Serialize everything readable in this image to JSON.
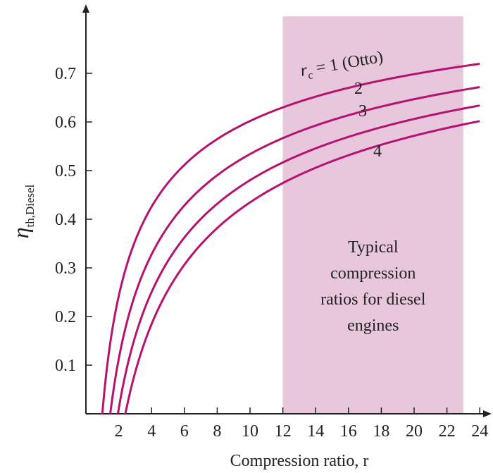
{
  "chart_data": {
    "type": "line",
    "xlabel": "Compression ratio, r",
    "ylabel_main": "η",
    "ylabel_sub": "th,Diesel",
    "xlim": [
      0,
      24.6
    ],
    "ylim": [
      0,
      0.82
    ],
    "xticks": [
      2,
      4,
      6,
      8,
      10,
      12,
      14,
      16,
      18,
      20,
      22,
      24
    ],
    "yticks": [
      0.1,
      0.2,
      0.3,
      0.4,
      0.5,
      0.6,
      0.7
    ],
    "ytick_labels": [
      "0.1",
      "0.2",
      "0.3",
      "0.4",
      "0.5",
      "0.6",
      "0.7"
    ],
    "gamma": 1.4,
    "line_color": "#b5136f",
    "shaded_region": {
      "x_range": [
        12,
        23
      ],
      "color": "#e8c6dc",
      "text": [
        "Typical",
        "compression",
        "ratios for diesel",
        "engines"
      ]
    },
    "series": [
      {
        "rc": 1,
        "label_main": "r",
        "label_sub": "c",
        "label_rest": " = 1 (Otto)"
      },
      {
        "rc": 2,
        "label": "2"
      },
      {
        "rc": 3,
        "label": "3"
      },
      {
        "rc": 4,
        "label": "4"
      }
    ]
  }
}
